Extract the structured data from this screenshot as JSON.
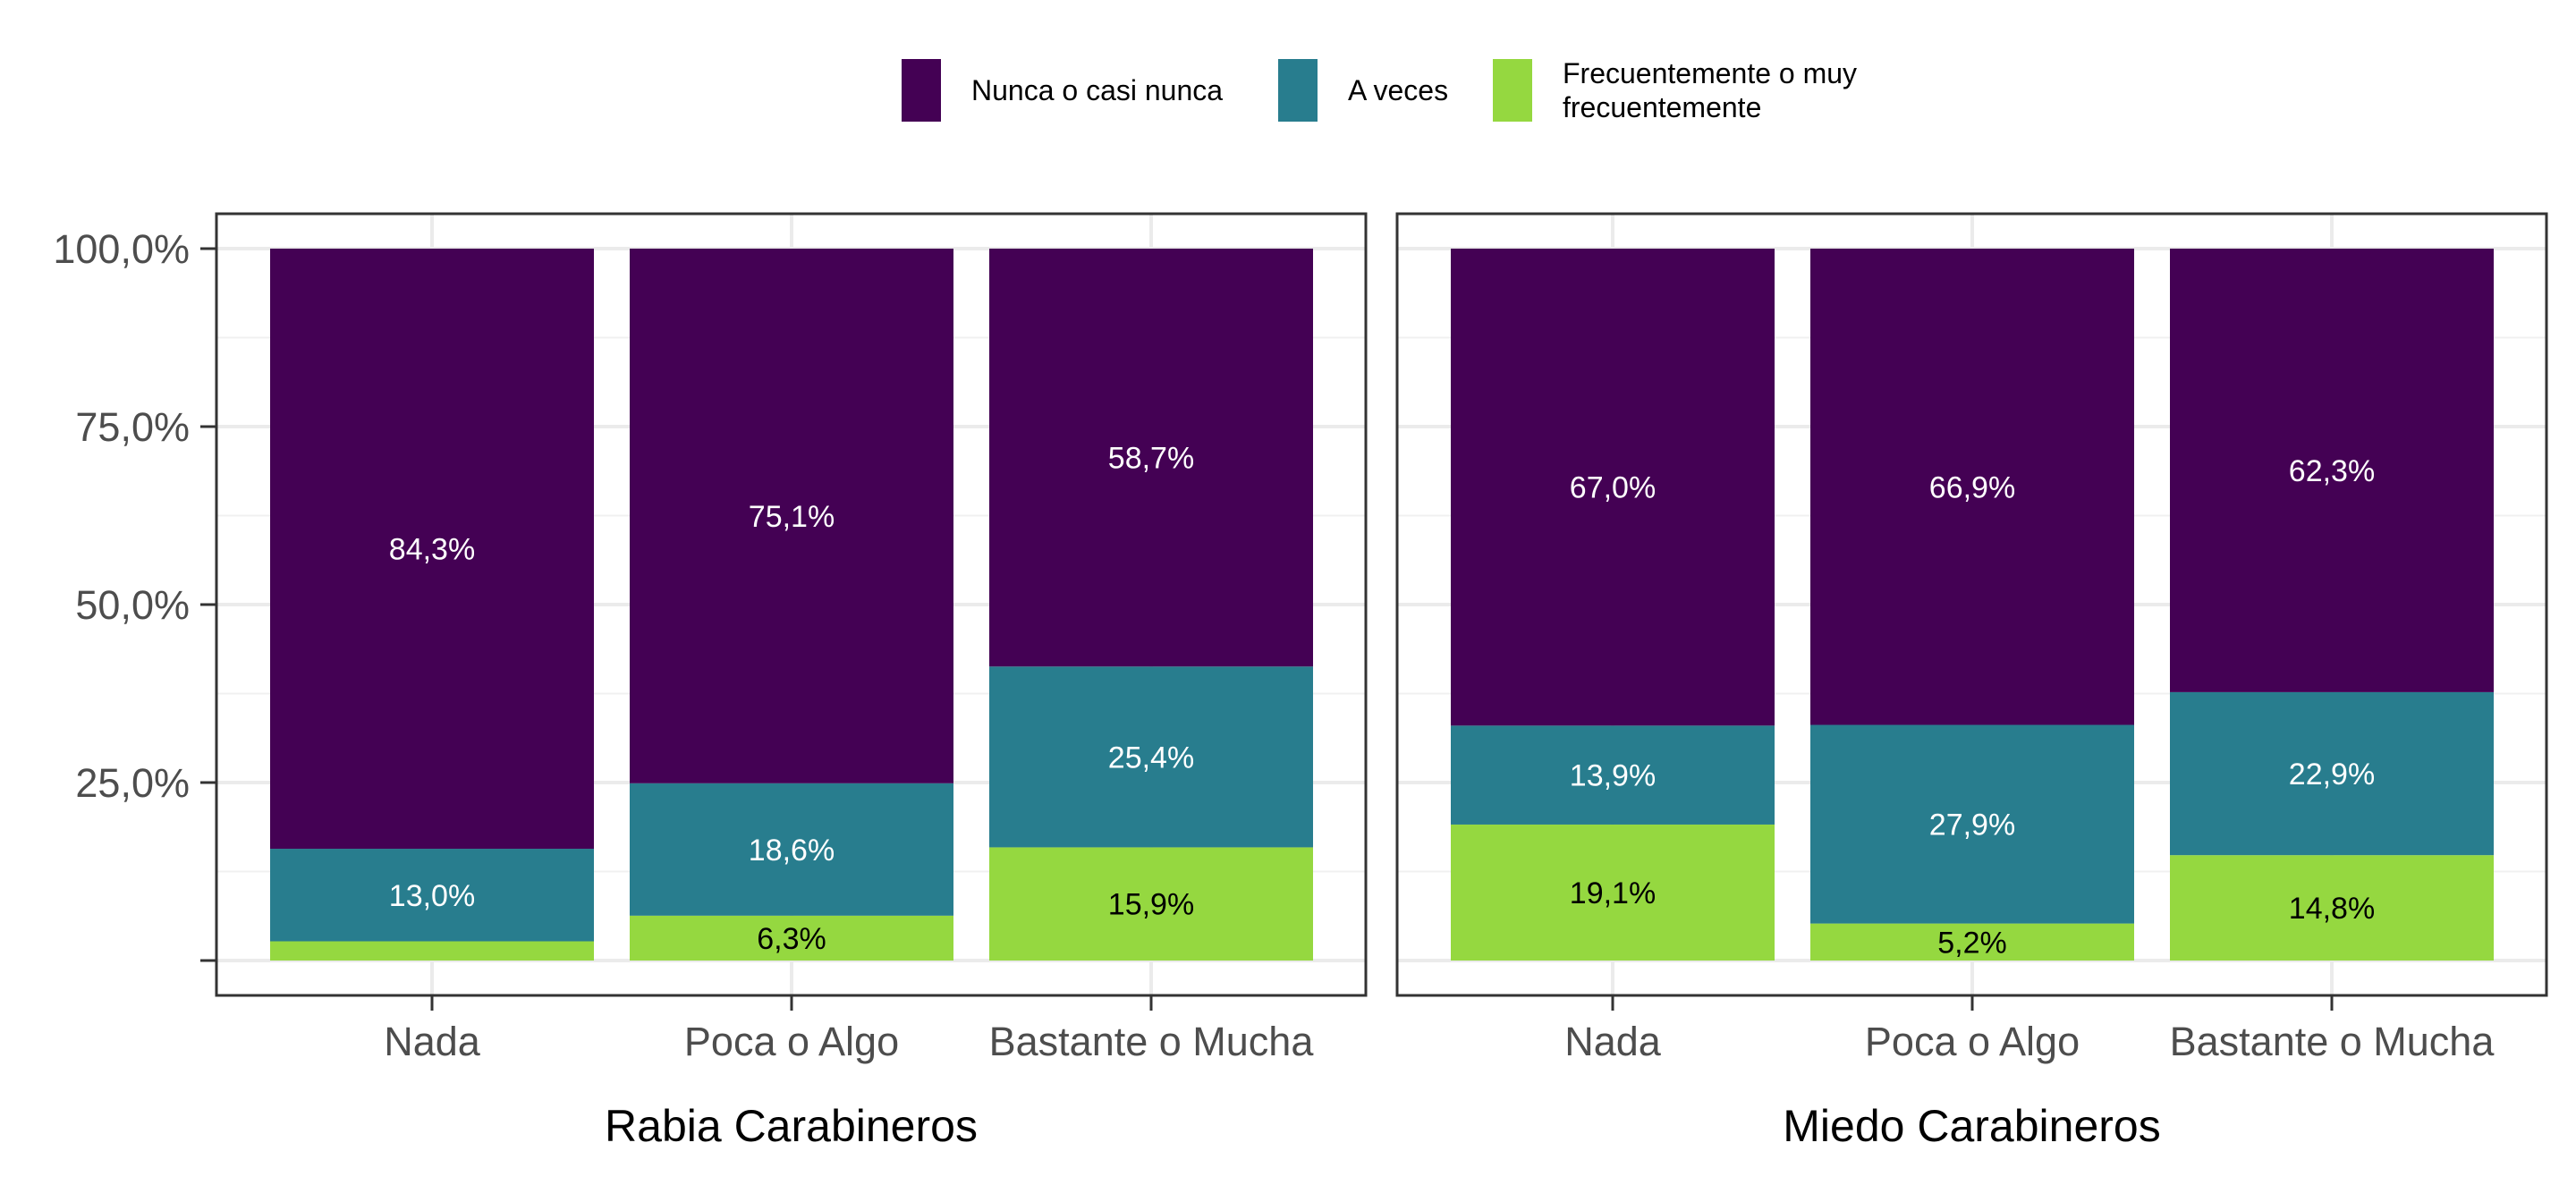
{
  "chart_data": {
    "type": "bar",
    "stacked": "percent",
    "legend_position": "top",
    "grid": true,
    "ylim": [
      0,
      100
    ],
    "y_ticks": [
      "25,0%",
      "50,0%",
      "75,0%",
      "100,0%"
    ],
    "y_tick_values": [
      25,
      50,
      75,
      100
    ],
    "categories": [
      "Nada",
      "Poca o Algo",
      "Bastante o Mucha"
    ],
    "legend": [
      {
        "key": "nunca",
        "lines": [
          "Nunca o casi nunca"
        ],
        "color": "#440154"
      },
      {
        "key": "aveces",
        "lines": [
          "A veces"
        ],
        "color": "#287D8E"
      },
      {
        "key": "frecuente",
        "lines": [
          "Frecuentemente o muy",
          "frecuentemente"
        ],
        "color": "#95D840"
      }
    ],
    "panels": [
      {
        "xlabel": "Rabia Carabineros",
        "series": [
          {
            "name": "Frecuentemente o muy frecuentemente",
            "values": [
              2.7,
              6.3,
              15.9
            ],
            "labels": [
              "",
              "6,3%",
              "15,9%"
            ],
            "color": "#95D840",
            "label_color": "#000000"
          },
          {
            "name": "A veces",
            "values": [
              13.0,
              18.6,
              25.4
            ],
            "labels": [
              "13,0%",
              "18,6%",
              "25,4%"
            ],
            "color": "#287D8E",
            "label_color": "#ffffff"
          },
          {
            "name": "Nunca o casi nunca",
            "values": [
              84.3,
              75.1,
              58.7
            ],
            "labels": [
              "84,3%",
              "75,1%",
              "58,7%"
            ],
            "color": "#440154",
            "label_color": "#ffffff"
          }
        ]
      },
      {
        "xlabel": "Miedo Carabineros",
        "series": [
          {
            "name": "Frecuentemente o muy frecuentemente",
            "values": [
              19.1,
              5.2,
              14.8
            ],
            "labels": [
              "19,1%",
              "5,2%",
              "14,8%"
            ],
            "color": "#95D840",
            "label_color": "#000000"
          },
          {
            "name": "A veces",
            "values": [
              13.9,
              27.9,
              22.9
            ],
            "labels": [
              "13,9%",
              "27,9%",
              "22,9%"
            ],
            "color": "#287D8E",
            "label_color": "#ffffff"
          },
          {
            "name": "Nunca o casi nunca",
            "values": [
              67.0,
              66.9,
              62.3
            ],
            "labels": [
              "67,0%",
              "66,9%",
              "62,3%"
            ],
            "color": "#440154",
            "label_color": "#ffffff"
          }
        ]
      }
    ]
  }
}
